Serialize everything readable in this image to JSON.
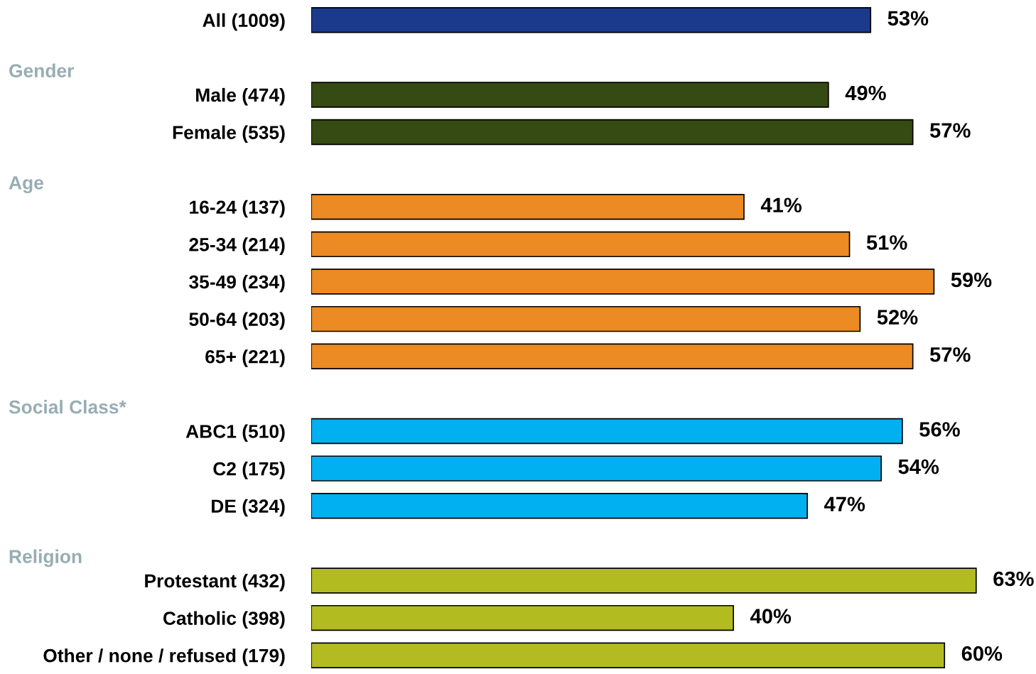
{
  "chart_data": {
    "type": "bar",
    "orientation": "horizontal",
    "data_labels": true,
    "categories": [
      "All (1009)",
      null,
      "Male (474)",
      "Female (535)",
      null,
      "16-24 (137)",
      "25-34 (214)",
      "35-49 (234)",
      "50-64 (203)",
      "65+ (221)",
      null,
      "ABC1 (510)",
      "C2 (175)",
      "DE (324)",
      null,
      "Protestant (432)",
      "Catholic (398)",
      "Other / none / refused (179)"
    ],
    "values": [
      53,
      null,
      49,
      57,
      null,
      41,
      51,
      59,
      52,
      57,
      null,
      56,
      54,
      47,
      null,
      63,
      40,
      60
    ],
    "value_labels": [
      "53%",
      null,
      "49%",
      "57%",
      null,
      "41%",
      "51%",
      "59%",
      "52%",
      "57%",
      null,
      "56%",
      "54%",
      "47%",
      null,
      "63%",
      "40%",
      "60%"
    ],
    "colors": [
      "#1b3a8c",
      null,
      "#364a13",
      "#364a13",
      null,
      "#ec8a23",
      "#ec8a23",
      "#ec8a23",
      "#ec8a23",
      "#ec8a23",
      null,
      "#00b0f0",
      "#00b0f0",
      "#00b0f0",
      null,
      "#b2bc20",
      "#b2bc20",
      "#b2bc20"
    ],
    "annotations": [
      "Gender",
      "Age",
      "Social Class*",
      "Religion"
    ]
  }
}
